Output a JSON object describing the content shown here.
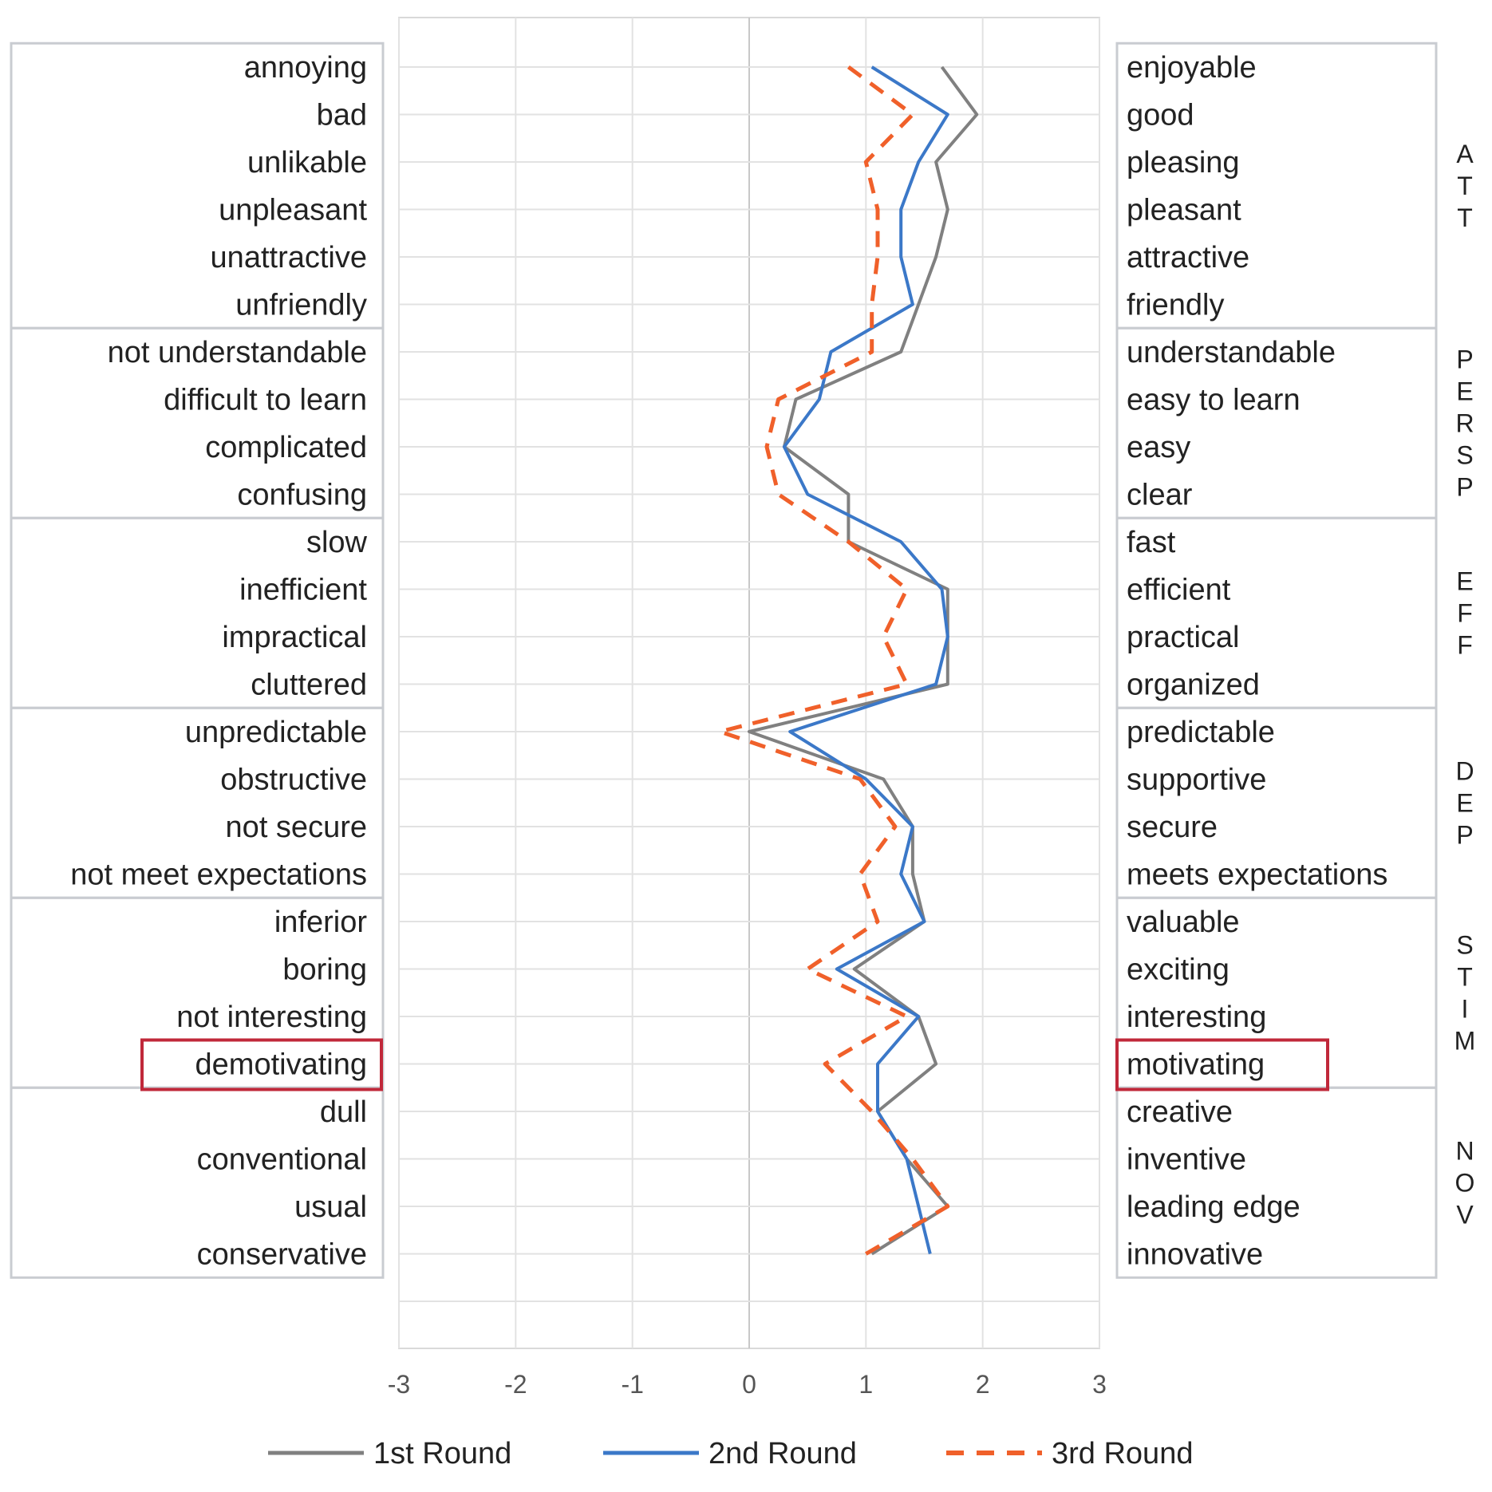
{
  "chart_data": {
    "type": "line",
    "orientation": "horizontal-profile",
    "xlim": [
      -3,
      3
    ],
    "x_ticks": [
      "-3",
      "-2",
      "-1",
      "0",
      "1",
      "2",
      "3"
    ],
    "grid": true,
    "legend_position": "bottom",
    "items": [
      {
        "left": "annoying",
        "right": "enjoyable"
      },
      {
        "left": "bad",
        "right": "good"
      },
      {
        "left": "unlikable",
        "right": "pleasing"
      },
      {
        "left": "unpleasant",
        "right": "pleasant"
      },
      {
        "left": "unattractive",
        "right": "attractive"
      },
      {
        "left": "unfriendly",
        "right": "friendly"
      },
      {
        "left": "not understandable",
        "right": "understandable"
      },
      {
        "left": "difficult to learn",
        "right": "easy to learn"
      },
      {
        "left": "complicated",
        "right": "easy"
      },
      {
        "left": "confusing",
        "right": "clear"
      },
      {
        "left": "slow",
        "right": "fast"
      },
      {
        "left": "inefficient",
        "right": "efficient"
      },
      {
        "left": "impractical",
        "right": "practical"
      },
      {
        "left": "cluttered",
        "right": "organized"
      },
      {
        "left": "unpredictable",
        "right": "predictable"
      },
      {
        "left": "obstructive",
        "right": "supportive"
      },
      {
        "left": "not secure",
        "right": "secure"
      },
      {
        "left": "not meet expectations",
        "right": "meets expectations"
      },
      {
        "left": "inferior",
        "right": "valuable"
      },
      {
        "left": "boring",
        "right": "exciting"
      },
      {
        "left": "not interesting",
        "right": "interesting"
      },
      {
        "left": "demotivating",
        "right": "motivating"
      },
      {
        "left": "dull",
        "right": "creative"
      },
      {
        "left": "conventional",
        "right": "inventive"
      },
      {
        "left": "usual",
        "right": "leading edge"
      },
      {
        "left": "conservative",
        "right": "innovative"
      }
    ],
    "groups": [
      {
        "label": "ATT",
        "start": 0,
        "end": 5
      },
      {
        "label": "PERSP",
        "start": 6,
        "end": 9
      },
      {
        "label": "EFF",
        "start": 10,
        "end": 13
      },
      {
        "label": "DEP",
        "start": 14,
        "end": 17
      },
      {
        "label": "STIM",
        "start": 18,
        "end": 21
      },
      {
        "label": "NOV",
        "start": 22,
        "end": 25
      }
    ],
    "highlighted_item": 21,
    "series": [
      {
        "name": "1st Round",
        "color": "#808080",
        "style": "solid",
        "values": [
          1.65,
          1.95,
          1.6,
          1.7,
          1.6,
          1.45,
          1.3,
          0.4,
          0.3,
          0.85,
          0.85,
          1.7,
          1.7,
          1.7,
          0.0,
          1.15,
          1.4,
          1.4,
          1.5,
          0.9,
          1.45,
          1.6,
          1.1,
          1.35,
          1.7,
          1.05
        ]
      },
      {
        "name": "2nd Round",
        "color": "#3b78c8",
        "style": "solid",
        "values": [
          1.05,
          1.7,
          1.45,
          1.3,
          1.3,
          1.4,
          0.7,
          0.6,
          0.3,
          0.5,
          1.3,
          1.65,
          1.7,
          1.6,
          0.35,
          1.0,
          1.4,
          1.3,
          1.5,
          0.75,
          1.45,
          1.1,
          1.1,
          1.35,
          1.45,
          1.55
        ]
      },
      {
        "name": "3rd Round",
        "color": "#f0602a",
        "style": "dashed",
        "values": [
          0.85,
          1.4,
          1.0,
          1.1,
          1.1,
          1.05,
          1.05,
          0.25,
          0.15,
          0.25,
          0.85,
          1.35,
          1.15,
          1.35,
          -0.25,
          0.95,
          1.25,
          0.95,
          1.1,
          0.5,
          1.35,
          0.65,
          1.05,
          1.4,
          1.7,
          1.0
        ]
      }
    ]
  }
}
